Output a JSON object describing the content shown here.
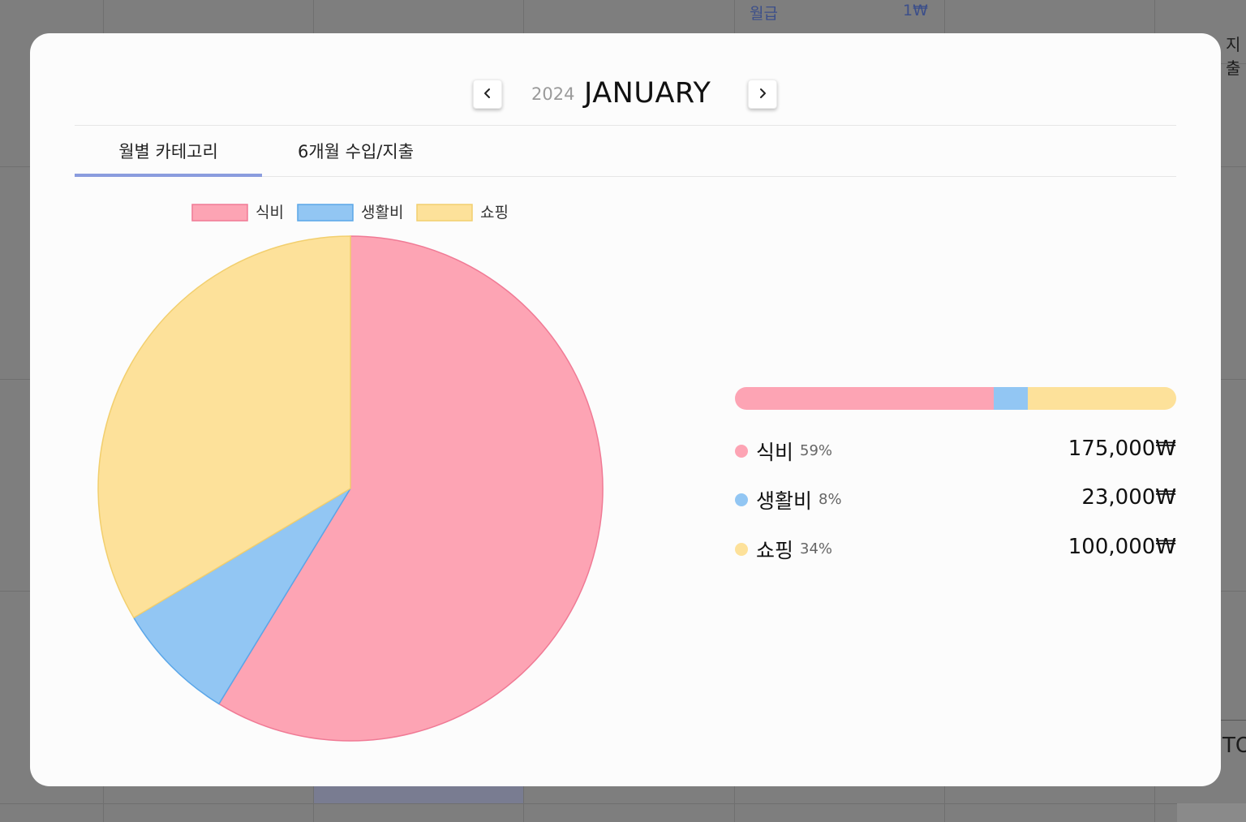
{
  "background": {
    "top_row_label": "월급",
    "top_row_amount": "1₩",
    "side_label": "지출",
    "side_label_2": "TO"
  },
  "header": {
    "year": "2024",
    "month": "JANUARY",
    "prev_icon": "chevron-left-icon",
    "next_icon": "chevron-right-icon"
  },
  "tabs": [
    {
      "label": "월별 카테고리",
      "active": true
    },
    {
      "label": "6개월 수입/지출",
      "active": false
    }
  ],
  "colors": {
    "food": "#fda4b4",
    "living": "#92c6f3",
    "shopping": "#fde19a",
    "food_border": "#f07a95",
    "living_border": "#5aa6e8",
    "shopping_border": "#f2cf6e",
    "tab_indicator": "#8a9cde"
  },
  "categories": [
    {
      "name": "식비",
      "percent": "59%",
      "amount": "175,000₩"
    },
    {
      "name": "생활비",
      "percent": "8%",
      "amount": "23,000₩"
    },
    {
      "name": "쇼핑",
      "percent": "34%",
      "amount": "100,000₩"
    }
  ],
  "chart_data": {
    "type": "pie",
    "categories": [
      "식비",
      "생활비",
      "쇼핑"
    ],
    "values": [
      175000,
      23000,
      100000
    ],
    "legend": "top-left"
  }
}
